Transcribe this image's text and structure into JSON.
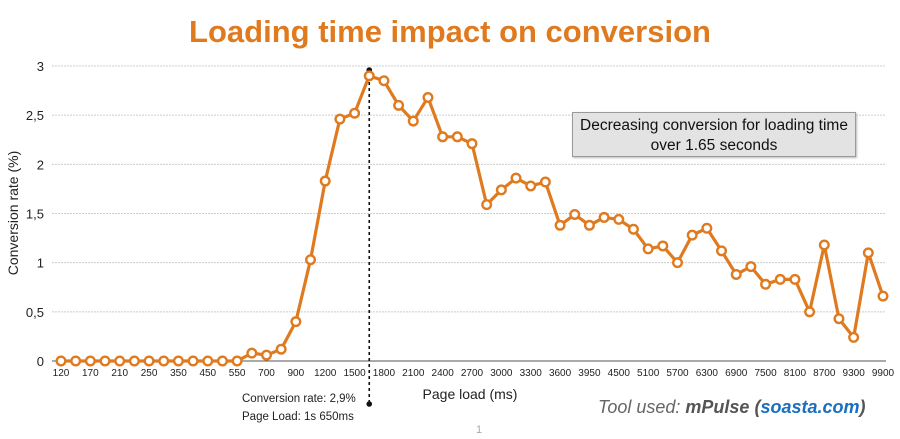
{
  "chart_data": {
    "type": "line",
    "title": "Loading time impact on conversion",
    "xlabel": "Page load (ms)",
    "ylabel": "Conversion rate (%)",
    "ylim": [
      0,
      3
    ],
    "y_ticks": [
      "0",
      "0,5",
      "1",
      "1,5",
      "2",
      "2,5",
      "3"
    ],
    "y_tick_values": [
      0,
      0.5,
      1,
      1.5,
      2,
      2.5,
      3
    ],
    "x_tick_labels": [
      "120",
      "170",
      "210",
      "250",
      "350",
      "450",
      "550",
      "700",
      "900",
      "1200",
      "1500",
      "1800",
      "2100",
      "2400",
      "2700",
      "3000",
      "3300",
      "3600",
      "3950",
      "4500",
      "5100",
      "5700",
      "6300",
      "6900",
      "7500",
      "8100",
      "8700",
      "9300",
      "9900"
    ],
    "x_tick_every": 2,
    "grid": true,
    "series": [
      {
        "name": "Conversion rate",
        "color": "#e07a1f",
        "values": [
          0,
          0,
          0,
          0,
          0,
          0,
          0,
          0,
          0,
          0,
          0,
          0,
          0,
          0.08,
          0.06,
          0.12,
          0.4,
          1.03,
          1.83,
          2.46,
          2.52,
          2.9,
          2.85,
          2.6,
          2.44,
          2.68,
          2.28,
          2.28,
          2.21,
          1.59,
          1.74,
          1.86,
          1.78,
          1.82,
          1.38,
          1.49,
          1.38,
          1.46,
          1.44,
          1.34,
          1.14,
          1.17,
          1.0,
          1.28,
          1.35,
          1.12,
          0.88,
          0.96,
          0.78,
          0.83,
          0.83,
          0.5,
          1.18,
          0.43,
          0.24,
          1.1,
          0.66
        ]
      }
    ],
    "marker_index": 21,
    "annotations": {
      "box": "Decreasing conversion for loading time over 1.65 seconds",
      "peak_rate": "Conversion rate: 2,9%",
      "peak_load": "Page Load: 1s 650ms"
    }
  },
  "footer": {
    "tool_prefix": "Tool used: ",
    "tool_name": "mPulse",
    "paren_open": " (",
    "tool_site": "soasta.com",
    "paren_close": ")",
    "page_number": "1"
  }
}
